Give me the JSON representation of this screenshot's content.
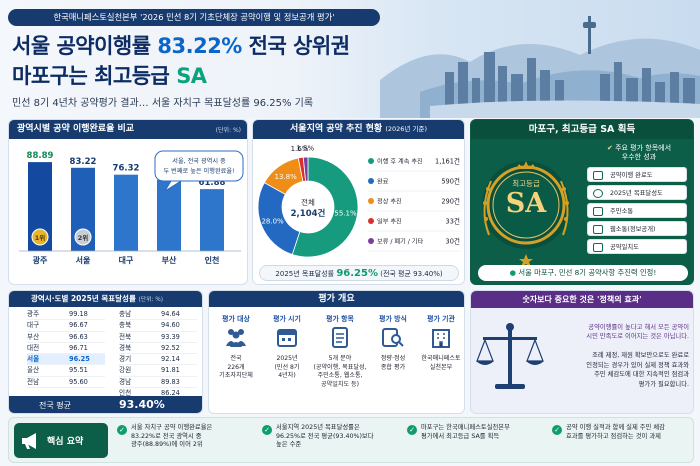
{
  "header": {
    "badge": "한국매니페스토실천본부 '2026 민선 8기 기초단체장 공약이행 및 정보공개 평가'",
    "title_line1_part1": "서울 공약이행률 ",
    "title_line1_accent": "83.22%",
    "title_line1_part2": " 전국 상위권",
    "title_line2_part1": "마포구는 최고등급 ",
    "title_line2_accent": "SA",
    "subtitle": "민선 8기 4년차 공약평가 결과… 서울 자치구 목표달성률 96.25% 기록"
  },
  "bar_panel": {
    "title": "광역시별 공약 이행완료율 비교",
    "unit": "(단위: %)",
    "bubble": "서울, 전국 광역시 중\n두 번째로 높은 이행완료율!",
    "rank1": "1위",
    "rank2": "2위"
  },
  "donut_panel": {
    "title": "서울지역 공약 추진 현황",
    "subtitle": "(2026년 기준)",
    "center_label": "전체",
    "center_value": "2,104건",
    "footer_label": "2025년 목표달성률",
    "footer_value": "96.25%",
    "footer_note": "(전국 평균 93.40%)"
  },
  "sa_panel": {
    "title": "마포구, 최고등급 SA 획득",
    "header_line1": "주요 평가 항목에서",
    "header_line2": "우수한 성과",
    "medal_top": "최고등급",
    "medal_grade": "SA",
    "items": [
      "공약이행 완료도",
      "2025년 목표달성도",
      "주민소통",
      "웹소통(정보공개)",
      "공약일치도"
    ],
    "footer": "서울 마포구, 민선 8기 공약사항 추진력 인정!"
  },
  "table_panel": {
    "title": "광역시·도별 2025년 목표달성률",
    "unit": "(단위: %)",
    "left": [
      {
        "name": "광주",
        "value": "99.18"
      },
      {
        "name": "대구",
        "value": "96.67"
      },
      {
        "name": "부산",
        "value": "96.63"
      },
      {
        "name": "대전",
        "value": "96.71"
      },
      {
        "name": "서울",
        "value": "96.25"
      },
      {
        "name": "울산",
        "value": "95.51"
      },
      {
        "name": "전남",
        "value": "95.60"
      }
    ],
    "right": [
      {
        "name": "충남",
        "value": "94.64"
      },
      {
        "name": "충북",
        "value": "94.60"
      },
      {
        "name": "전북",
        "value": "93.39"
      },
      {
        "name": "경북",
        "value": "92.52"
      },
      {
        "name": "경기",
        "value": "92.14"
      },
      {
        "name": "강원",
        "value": "91.81"
      },
      {
        "name": "경남",
        "value": "89.83"
      },
      {
        "name": "인천",
        "value": "86.24"
      }
    ],
    "avg_label": "전국 평균",
    "avg_value": "93.40%"
  },
  "overview_panel": {
    "title": "평가 개요",
    "columns": [
      {
        "head": "평가 대상",
        "lines": [
          "전국",
          "226개",
          "기초자치단체"
        ]
      },
      {
        "head": "평가 시기",
        "lines": [
          "2025년",
          "(민선 8기",
          "4년차)"
        ]
      },
      {
        "head": "평가 항목",
        "lines": [
          "5개 분야",
          "(공약이행, 목표달성,",
          "주민소통, 웹소통,",
          "공약일치도 등)"
        ]
      },
      {
        "head": "평가 방식",
        "lines": [
          "정량·정성",
          "종합 평가"
        ]
      },
      {
        "head": "평가 기관",
        "lines": [
          "한국매니페스토",
          "실천본부"
        ]
      }
    ]
  },
  "effect_panel": {
    "title": "숫자보다 중요한 것은 '정책의 효과'",
    "para1": "공약이행률이 높다고 해서 모든 공약이\n시민 만족도로 이어지는 것은 아닙니다.",
    "para2": "조례 제정, 재원 확보만으로도 완료로\n인정되는 경우가 있어 실제 정책 효과와\n주민 체감도에 대한 지속적인 점검과\n평가가 필요합니다."
  },
  "key_summary": {
    "label": "핵심 요약",
    "items": [
      "서울 자치구 공약 이행완료율은\n83.22%로 전국 광역시 중\n광주(88.89%)에 이어 2위",
      "서울지역 2025년 목표달성률은\n96.25%로 전국 평균(93.40%)보다\n높은 수준",
      "마포구는 한국매니페스토실천본부\n평가에서 최고등급 SA를 획득",
      "공약 이행 실적과 함께 실제 주민 체감\n효과를 평가하고 점검하는 것이 과제"
    ]
  },
  "colors": {
    "navy": "#173b6e",
    "blue_bar": "#1f66bd",
    "green": "#0a6d52",
    "gold": "#d4a126",
    "donut_teal": "#169b7e",
    "donut_blue": "#2369c2",
    "donut_orange": "#ef8d19",
    "donut_red": "#d8302c",
    "donut_purple": "#7c3e9e"
  },
  "chart_data": [
    {
      "type": "bar",
      "title": "광역시별 공약 이행완료율 비교",
      "categories": [
        "광주",
        "서울",
        "대구",
        "부산",
        "인천"
      ],
      "values": [
        88.89,
        83.22,
        76.32,
        71.25,
        61.88
      ],
      "value_labels": [
        "88.89",
        "83.22",
        "76.32",
        "71.25",
        "61.88"
      ],
      "ylim": [
        0,
        100
      ]
    },
    {
      "type": "pie",
      "title": "서울지역 공약 추진 현황",
      "labels": [
        "이행 후 계속 추진",
        "완료",
        "정상 추진",
        "일부 추진",
        "보류 / 폐기 / 기타"
      ],
      "counts": [
        "1,161건",
        "590건",
        "290건",
        "33건",
        "30건"
      ],
      "values": [
        55.1,
        28.0,
        13.8,
        1.6,
        1.5
      ],
      "value_labels": [
        "55.1%",
        "28.0%",
        "13.8%",
        "1.6%",
        "1.5%"
      ]
    },
    {
      "type": "table",
      "title": "광역시·도별 2025년 목표달성률",
      "rows": [
        [
          "광주",
          99.18
        ],
        [
          "대구",
          96.67
        ],
        [
          "부산",
          96.63
        ],
        [
          "대전",
          96.71
        ],
        [
          "서울",
          96.25
        ],
        [
          "울산",
          95.51
        ],
        [
          "전남",
          95.6
        ],
        [
          "충남",
          94.64
        ],
        [
          "충북",
          94.6
        ],
        [
          "전북",
          93.39
        ],
        [
          "경북",
          92.52
        ],
        [
          "경기",
          92.14
        ],
        [
          "강원",
          91.81
        ],
        [
          "경남",
          89.83
        ],
        [
          "인천",
          86.24
        ]
      ]
    }
  ]
}
